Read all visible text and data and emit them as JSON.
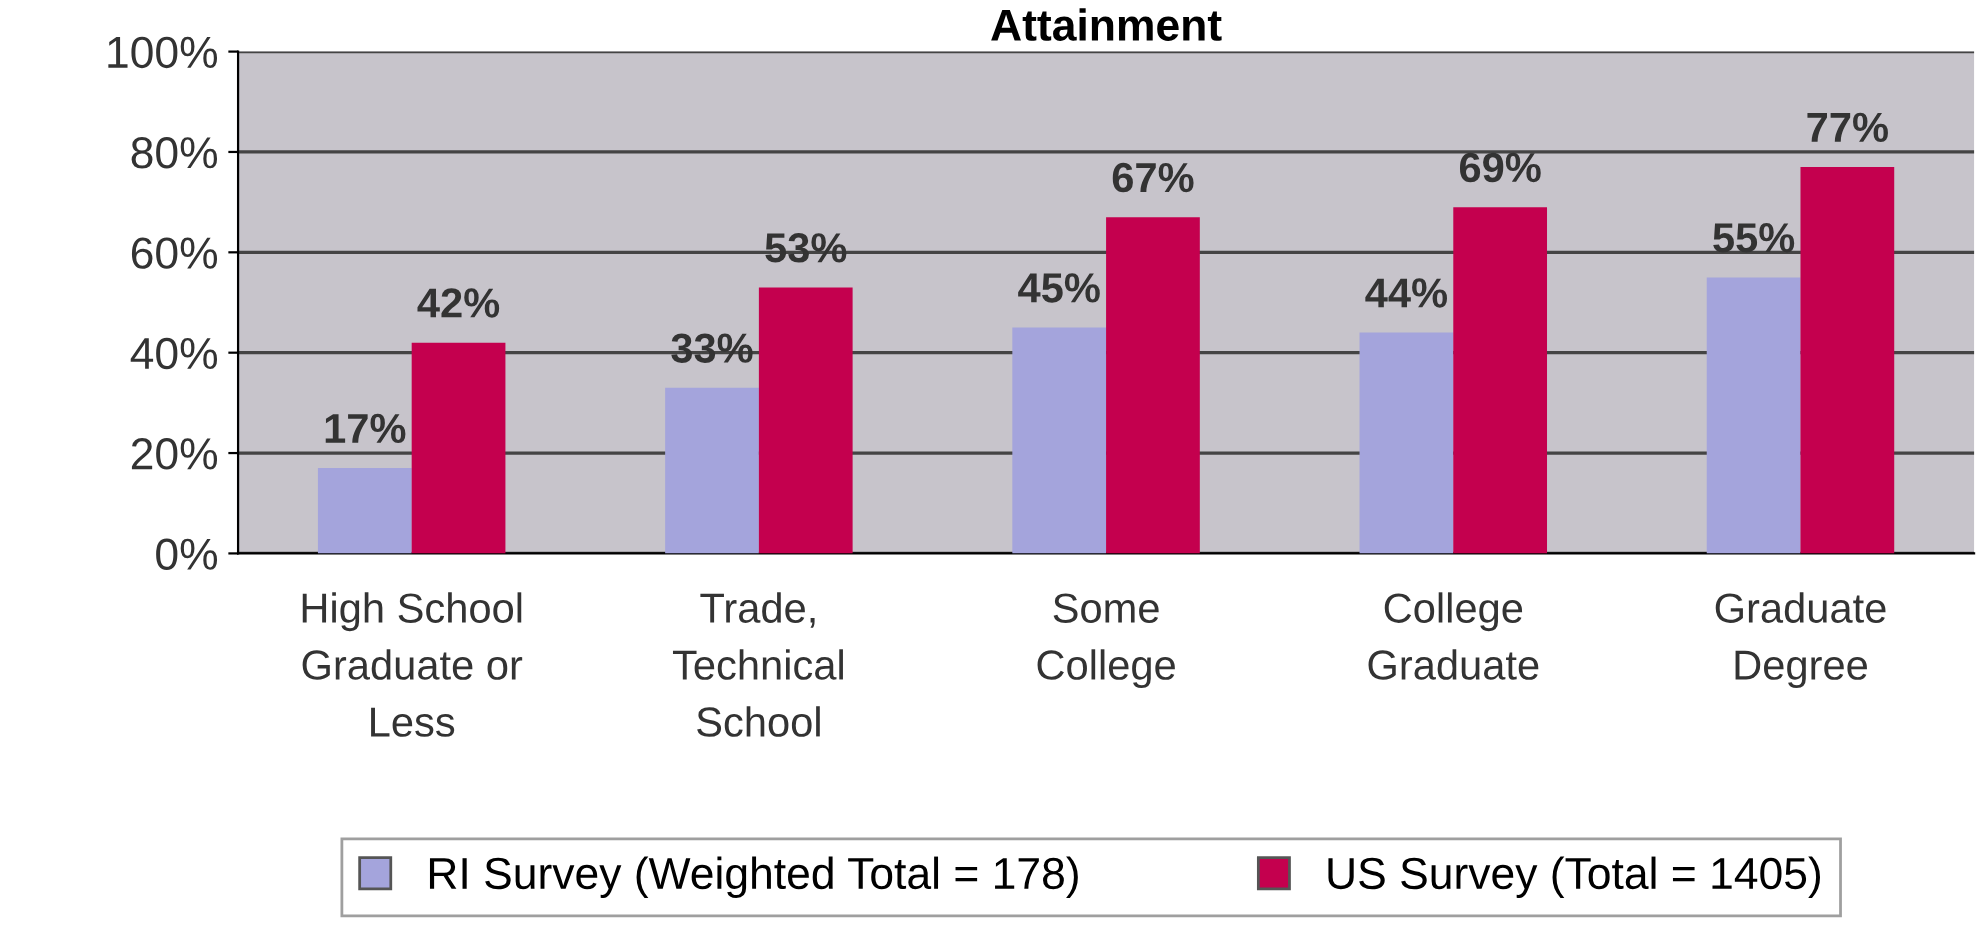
{
  "chart_data": {
    "type": "bar",
    "title": "Attainment",
    "categories": [
      "High School\nGraduate or\nLess",
      "Trade,\nTechnical\nSchool",
      "Some\nCollege",
      "College\nGraduate",
      "Graduate\nDegree"
    ],
    "series": [
      {
        "name": "RI Survey (Weighted Total = 178)",
        "color": "#a4a4dc",
        "values": [
          17,
          33,
          45,
          44,
          55
        ],
        "value_labels": [
          "17%",
          "33%",
          "45%",
          "44%",
          "55%"
        ]
      },
      {
        "name": "US Survey (Total = 1405)",
        "color": "#c4004e",
        "values": [
          42,
          53,
          67,
          69,
          77
        ],
        "value_labels": [
          "42%",
          "53%",
          "67%",
          "69%",
          "77%"
        ]
      }
    ],
    "ylim": [
      0,
      100
    ],
    "yticks": [
      {
        "value": 0,
        "label": "0%"
      },
      {
        "value": 20,
        "label": "20%"
      },
      {
        "value": 40,
        "label": "40%"
      },
      {
        "value": 60,
        "label": "60%"
      },
      {
        "value": 80,
        "label": "80%"
      },
      {
        "value": 100,
        "label": "100%"
      }
    ],
    "grid": "y",
    "legend": "bottom"
  }
}
